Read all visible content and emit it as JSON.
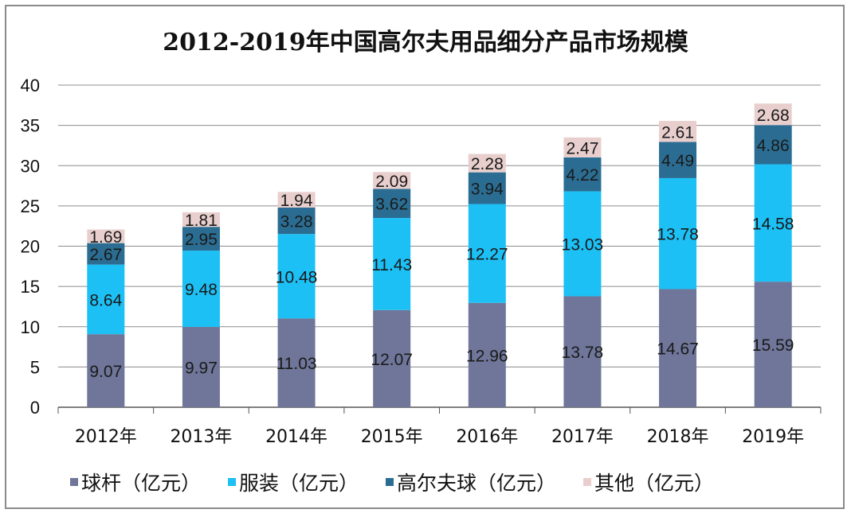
{
  "chart_data": {
    "type": "bar",
    "stacked": true,
    "title": "2012-2019年中国高尔夫用品细分产品市场规模",
    "categories": [
      "2012年",
      "2013年",
      "2014年",
      "2015年",
      "2016年",
      "2017年",
      "2018年",
      "2019年"
    ],
    "ylim": [
      0,
      40
    ],
    "yticks": [
      "0",
      "5",
      "10",
      "15",
      "20",
      "25",
      "30",
      "35",
      "40"
    ],
    "grid": true,
    "legend_position": "bottom",
    "series": [
      {
        "name": "球杆（亿元）",
        "color": "#6f7699",
        "values": [
          9.07,
          9.97,
          11.03,
          12.07,
          12.96,
          13.78,
          14.67,
          15.59
        ]
      },
      {
        "name": "服装（亿元）",
        "color": "#1cc0f5",
        "values": [
          8.64,
          9.48,
          10.48,
          11.43,
          12.27,
          13.03,
          13.78,
          14.58
        ]
      },
      {
        "name": "高尔夫球（亿元）",
        "color": "#2b6d92",
        "values": [
          2.67,
          2.95,
          3.28,
          3.62,
          3.94,
          4.22,
          4.49,
          4.86
        ]
      },
      {
        "name": "其他（亿元）",
        "color": "#e8cfcd",
        "values": [
          1.69,
          1.81,
          1.94,
          2.09,
          2.28,
          2.47,
          2.61,
          2.68
        ]
      }
    ]
  }
}
